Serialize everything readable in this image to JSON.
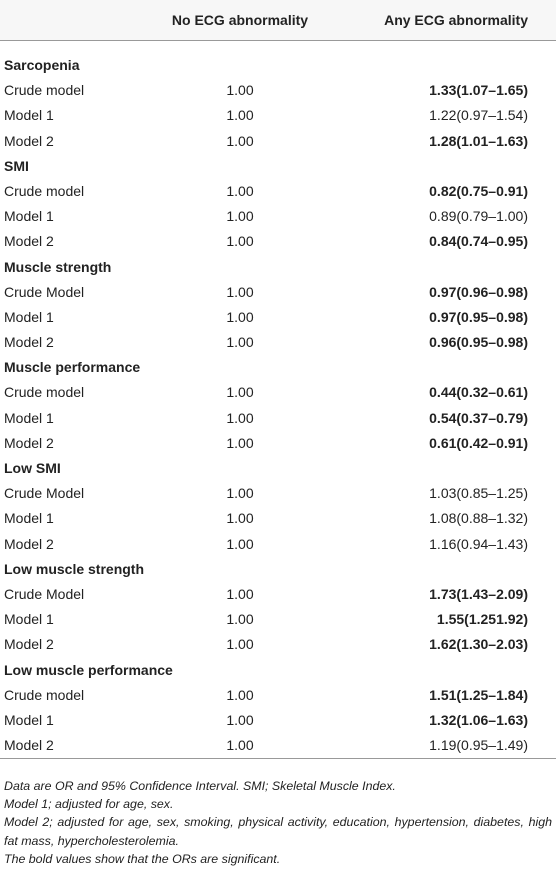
{
  "table": {
    "columns": [
      "No ECG abnormality",
      "Any ECG abnormality"
    ],
    "sections": [
      {
        "title": "Sarcopenia",
        "rows": [
          {
            "label": "Crude model",
            "no": "1.00",
            "any": "1.33(1.07–1.65)",
            "bold": true
          },
          {
            "label": "Model 1",
            "no": "1.00",
            "any": "1.22(0.97–1.54)",
            "bold": false
          },
          {
            "label": "Model 2",
            "no": "1.00",
            "any": "1.28(1.01–1.63)",
            "bold": true
          }
        ]
      },
      {
        "title": "SMI",
        "rows": [
          {
            "label": "Crude model",
            "no": "1.00",
            "any": "0.82(0.75–0.91)",
            "bold": true
          },
          {
            "label": "Model 1",
            "no": "1.00",
            "any": "0.89(0.79–1.00)",
            "bold": false
          },
          {
            "label": "Model 2",
            "no": "1.00",
            "any": "0.84(0.74–0.95)",
            "bold": true
          }
        ]
      },
      {
        "title": "Muscle strength",
        "rows": [
          {
            "label": "Crude Model",
            "no": "1.00",
            "any": "0.97(0.96–0.98)",
            "bold": true
          },
          {
            "label": "Model 1",
            "no": "1.00",
            "any": "0.97(0.95–0.98)",
            "bold": true
          },
          {
            "label": "Model 2",
            "no": "1.00",
            "any": "0.96(0.95–0.98)",
            "bold": true
          }
        ]
      },
      {
        "title": "Muscle performance",
        "rows": [
          {
            "label": "Crude model",
            "no": "1.00",
            "any": "0.44(0.32–0.61)",
            "bold": true
          },
          {
            "label": "Model 1",
            "no": "1.00",
            "any": "0.54(0.37–0.79)",
            "bold": true
          },
          {
            "label": "Model 2",
            "no": "1.00",
            "any": "0.61(0.42–0.91)",
            "bold": true
          }
        ]
      },
      {
        "title": "Low SMI",
        "rows": [
          {
            "label": "Crude Model",
            "no": "1.00",
            "any": "1.03(0.85–1.25)",
            "bold": false
          },
          {
            "label": "Model 1",
            "no": "1.00",
            "any": "1.08(0.88–1.32)",
            "bold": false
          },
          {
            "label": "Model 2",
            "no": "1.00",
            "any": "1.16(0.94–1.43)",
            "bold": false
          }
        ]
      },
      {
        "title": "Low muscle strength",
        "rows": [
          {
            "label": "Crude Model",
            "no": "1.00",
            "any": "1.73(1.43–2.09)",
            "bold": true
          },
          {
            "label": "Model 1",
            "no": "1.00",
            "any": "1.55(1.251.92)",
            "bold": true
          },
          {
            "label": "Model 2",
            "no": "1.00",
            "any": "1.62(1.30–2.03)",
            "bold": true
          }
        ]
      },
      {
        "title": "Low muscle performance",
        "rows": [
          {
            "label": "Crude model",
            "no": "1.00",
            "any": "1.51(1.25–1.84)",
            "bold": true
          },
          {
            "label": "Model 1",
            "no": "1.00",
            "any": "1.32(1.06–1.63)",
            "bold": true
          },
          {
            "label": "Model 2",
            "no": "1.00",
            "any": "1.19(0.95–1.49)",
            "bold": false
          }
        ]
      }
    ],
    "footnotes": [
      "Data are OR and 95% Confidence Interval. SMI; Skeletal Muscle Index.",
      "Model 1; adjusted for age, sex.",
      "Model 2; adjusted for age, sex, smoking, physical activity, education, hypertension, diabetes, high fat mass, hypercholesterolemia.",
      "The bold values show that the ORs are significant."
    ]
  }
}
